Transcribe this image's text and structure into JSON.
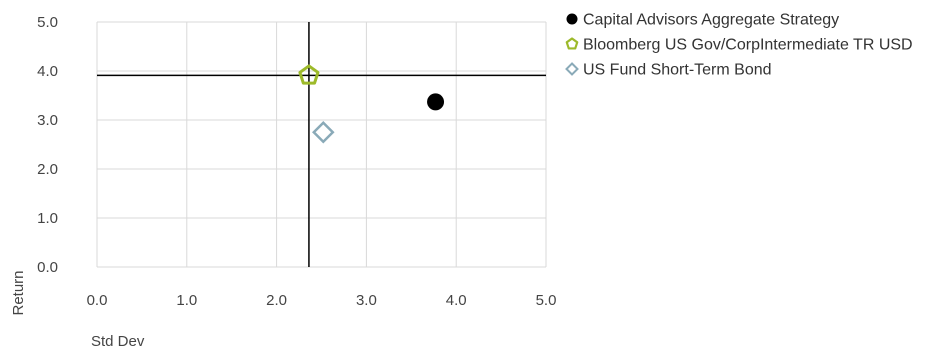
{
  "chart_data": {
    "type": "scatter",
    "xlabel": "Std Dev",
    "ylabel": "Return",
    "xlim": [
      0,
      5
    ],
    "ylim": [
      0,
      5
    ],
    "x_ticks": [
      "0.0",
      "1.0",
      "2.0",
      "3.0",
      "4.0",
      "5.0"
    ],
    "y_ticks": [
      "0.0",
      "1.0",
      "2.0",
      "3.0",
      "4.0",
      "5.0"
    ],
    "grid": true,
    "legend_position": "top-right",
    "series": [
      {
        "name": "Capital Advisors Aggregate Strategy",
        "x": 3.77,
        "y": 3.37,
        "marker": "filled-circle",
        "color": "#000000"
      },
      {
        "name": "Bloomberg US Gov/CorpIntermediate TR USD",
        "x": 2.36,
        "y": 3.91,
        "marker": "pentagon",
        "color": "#9dba2a"
      },
      {
        "name": "US Fund Short-Term Bond",
        "x": 2.52,
        "y": 2.75,
        "marker": "diamond",
        "color": "#8aaab8"
      }
    ],
    "crosshair": {
      "x": 2.36,
      "y": 3.91,
      "color": "#000000"
    }
  }
}
